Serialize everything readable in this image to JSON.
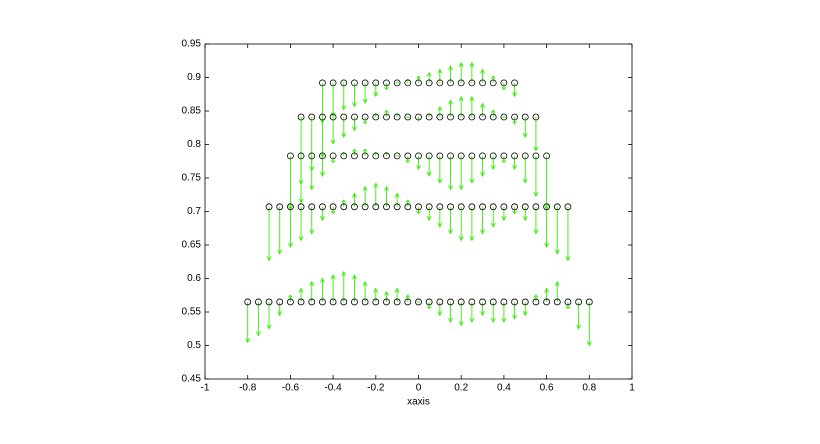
{
  "chart_data": {
    "type": "quiver",
    "xlabel": "xaxis",
    "xlim": [
      -1,
      1
    ],
    "xticks": [
      -1,
      -0.8,
      -0.6,
      -0.4,
      -0.2,
      0,
      0.2,
      0.4,
      0.6,
      0.8,
      1
    ],
    "ylim": [
      0.45,
      0.95
    ],
    "yticks": [
      0.45,
      0.5,
      0.55,
      0.6,
      0.65,
      0.7,
      0.75,
      0.8,
      0.85,
      0.9,
      0.95
    ],
    "marker_color": "#000000",
    "arrow_color": "#33ee00",
    "series": [
      {
        "y": 0.892,
        "x": [
          -0.45,
          -0.4,
          -0.35,
          -0.3,
          -0.25,
          -0.2,
          -0.15,
          -0.1,
          -0.05,
          0,
          0.05,
          0.1,
          0.15,
          0.2,
          0.25,
          0.3,
          0.35,
          0.4,
          0.45
        ],
        "v": [
          -0.06,
          -0.05,
          -0.04,
          -0.035,
          -0.03,
          -0.02,
          -0.01,
          0,
          0.005,
          0.01,
          0.015,
          0.02,
          0.025,
          0.03,
          0.03,
          0.02,
          0.01,
          -0.01,
          -0.02
        ]
      },
      {
        "y": 0.841,
        "x": [
          -0.55,
          -0.5,
          -0.45,
          -0.4,
          -0.35,
          -0.3,
          -0.25,
          -0.2,
          -0.15,
          -0.1,
          -0.05,
          0,
          0.05,
          0.1,
          0.15,
          0.2,
          0.25,
          0.3,
          0.35,
          0.4,
          0.45,
          0.5,
          0.55
        ],
        "v": [
          -0.1,
          -0.08,
          -0.06,
          -0.04,
          -0.03,
          -0.02,
          -0.01,
          0.005,
          0.01,
          0.005,
          0,
          -0.005,
          0.005,
          0.015,
          0.025,
          0.03,
          0.03,
          0.02,
          0.01,
          0,
          -0.01,
          -0.03,
          -0.05
        ]
      },
      {
        "y": 0.783,
        "x": [
          -0.6,
          -0.55,
          -0.5,
          -0.45,
          -0.4,
          -0.35,
          -0.3,
          -0.25,
          -0.2,
          -0.15,
          -0.1,
          -0.05,
          0,
          0.05,
          0.1,
          0.15,
          0.2,
          0.25,
          0.3,
          0.35,
          0.4,
          0.45,
          0.5,
          0.55,
          0.6
        ],
        "v": [
          -0.08,
          -0.07,
          -0.05,
          -0.03,
          -0.01,
          0.005,
          0.01,
          0.01,
          0.005,
          0.005,
          0,
          -0.01,
          -0.02,
          -0.03,
          -0.04,
          -0.05,
          -0.05,
          -0.04,
          -0.03,
          -0.02,
          -0.01,
          -0.02,
          -0.04,
          -0.06,
          -0.08
        ]
      },
      {
        "y": 0.707,
        "x": [
          -0.7,
          -0.65,
          -0.6,
          -0.55,
          -0.5,
          -0.45,
          -0.4,
          -0.35,
          -0.3,
          -0.25,
          -0.2,
          -0.15,
          -0.1,
          -0.05,
          0,
          0.05,
          0.1,
          0.15,
          0.2,
          0.25,
          0.3,
          0.35,
          0.4,
          0.45,
          0.5,
          0.55,
          0.6,
          0.65,
          0.7
        ],
        "v": [
          -0.08,
          -0.07,
          -0.06,
          -0.05,
          -0.04,
          -0.02,
          -0.01,
          0.01,
          0.02,
          0.03,
          0.035,
          0.03,
          0.02,
          0.01,
          -0.01,
          -0.02,
          -0.03,
          -0.04,
          -0.05,
          -0.05,
          -0.04,
          -0.03,
          -0.02,
          -0.01,
          -0.02,
          -0.04,
          -0.06,
          -0.07,
          -0.08
        ]
      },
      {
        "y": 0.565,
        "x": [
          -0.8,
          -0.75,
          -0.7,
          -0.65,
          -0.6,
          -0.55,
          -0.5,
          -0.45,
          -0.4,
          -0.35,
          -0.3,
          -0.25,
          -0.2,
          -0.15,
          -0.1,
          -0.05,
          0,
          0.05,
          0.1,
          0.15,
          0.2,
          0.25,
          0.3,
          0.35,
          0.4,
          0.45,
          0.5,
          0.55,
          0.6,
          0.65,
          0.7,
          0.75,
          0.8
        ],
        "v": [
          -0.06,
          -0.05,
          -0.04,
          -0.02,
          0.01,
          0.02,
          0.03,
          0.035,
          0.04,
          0.045,
          0.04,
          0.03,
          0.02,
          0.015,
          0.02,
          0.01,
          0,
          -0.01,
          -0.02,
          -0.03,
          -0.035,
          -0.03,
          -0.02,
          -0.03,
          -0.03,
          -0.025,
          -0.02,
          0.01,
          0.02,
          0.03,
          -0.01,
          -0.04,
          -0.065
        ]
      }
    ]
  }
}
